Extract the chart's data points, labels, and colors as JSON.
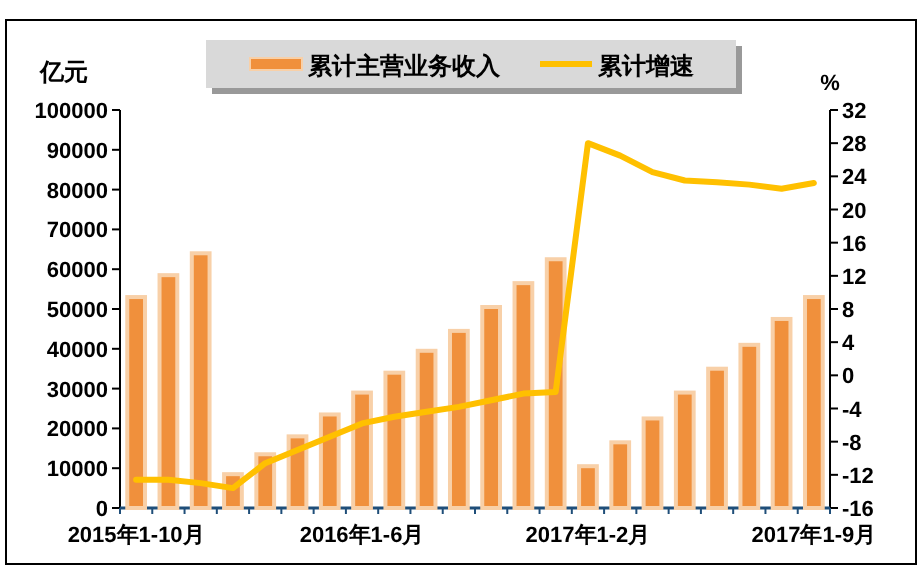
{
  "chart_data": {
    "type": "bar",
    "ylabel": "亿元",
    "y2label": "%",
    "categories": [
      "2015年1-10月",
      null,
      null,
      null,
      null,
      null,
      null,
      "2016年1-6月",
      null,
      null,
      null,
      null,
      null,
      null,
      "2017年1-2月",
      null,
      null,
      null,
      null,
      null,
      null,
      "2017年1-9月"
    ],
    "series": [
      {
        "name": "累计主营业务收入",
        "color": "#f0903c",
        "values": [
          53000,
          58500,
          64000,
          8500,
          13500,
          18000,
          23500,
          29000,
          34000,
          39500,
          44500,
          50500,
          56500,
          62500,
          10500,
          16500,
          22500,
          29000,
          35000,
          41000,
          47500,
          53000
        ]
      },
      {
        "name": "累计增速",
        "type": "line",
        "axis": "y2",
        "color": "#ffc000",
        "values": [
          -12.6,
          -12.6,
          -13,
          -13.6,
          -10.6,
          -9,
          -7.4,
          -5.8,
          -5,
          -4.4,
          -3.8,
          -3,
          -2.2,
          -2,
          28,
          26.5,
          24.5,
          23.5,
          23.3,
          23,
          22.5,
          23.2
        ]
      }
    ],
    "ylim": [
      0,
      100000
    ],
    "yticks": [
      0,
      10000,
      20000,
      30000,
      40000,
      50000,
      60000,
      70000,
      80000,
      90000,
      100000
    ],
    "y2lim": [
      -16,
      32
    ],
    "y2ticks": [
      -16,
      -12,
      -8,
      -4,
      0,
      4,
      8,
      12,
      16,
      20,
      24,
      28,
      32
    ],
    "legend": "top",
    "grid": false
  }
}
